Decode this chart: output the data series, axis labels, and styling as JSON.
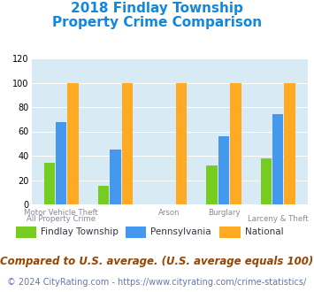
{
  "title_line1": "2018 Findlay Township",
  "title_line2": "Property Crime Comparison",
  "categories": [
    "All Property Crime",
    "Motor Vehicle Theft",
    "Arson",
    "Burglary",
    "Larceny & Theft"
  ],
  "series": {
    "Findlay Township": [
      34,
      15,
      0,
      32,
      38
    ],
    "Pennsylvania": [
      68,
      45,
      0,
      56,
      74
    ],
    "National": [
      100,
      100,
      100,
      100,
      100
    ]
  },
  "colors": {
    "Findlay Township": "#77cc22",
    "Pennsylvania": "#4499ee",
    "National": "#ffaa22"
  },
  "ylim": [
    0,
    120
  ],
  "yticks": [
    0,
    20,
    40,
    60,
    80,
    100,
    120
  ],
  "background_color": "#ffffff",
  "plot_bg_color": "#d8eaf4",
  "title_color": "#1188dd",
  "xtick_color": "#888899",
  "footer_text": "Compared to U.S. average. (U.S. average equals 100)",
  "copyright_text": "© 2024 CityRating.com - https://www.cityrating.com/crime-statistics/",
  "title_fontsize": 11,
  "footer_fontsize": 8.5,
  "copyright_fontsize": 7,
  "bar_width": 0.22
}
